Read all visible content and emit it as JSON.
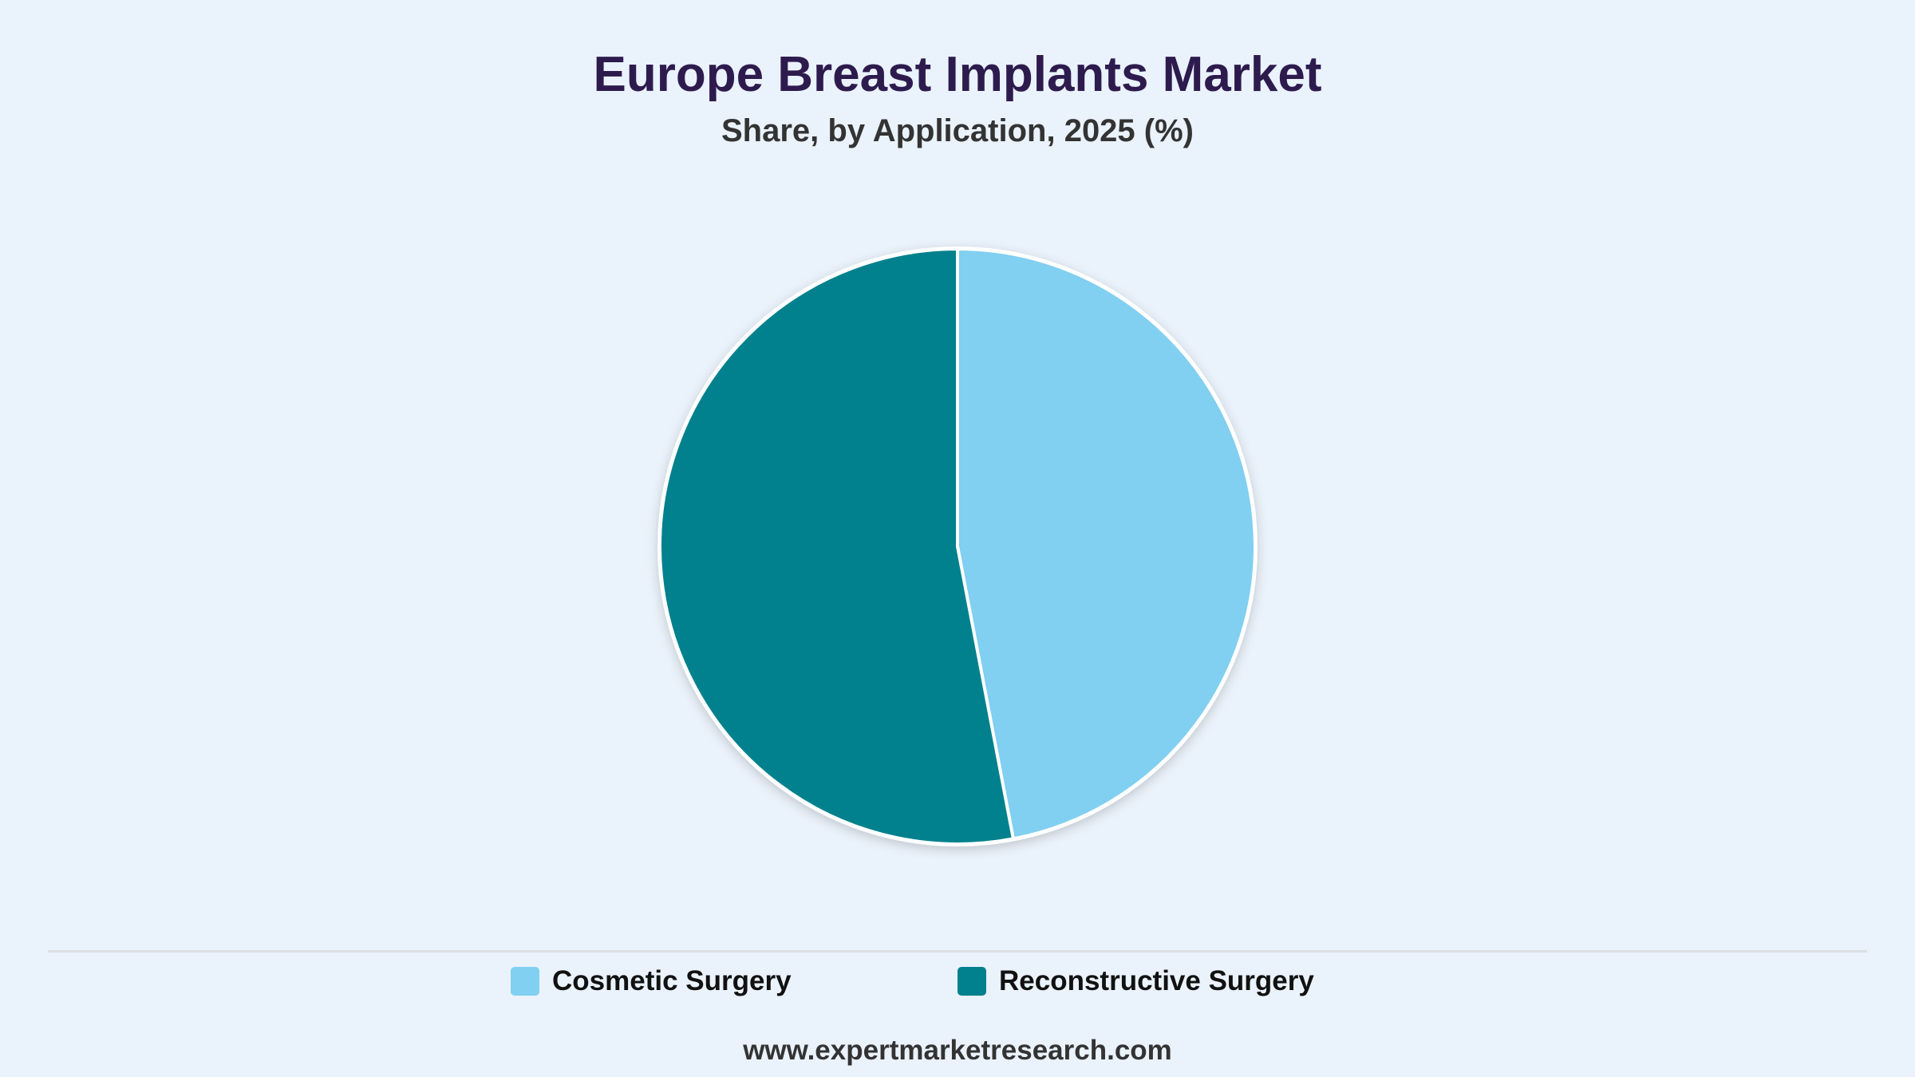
{
  "header": {
    "title": "Europe Breast Implants Market",
    "subtitle": "Share, by Application, 2025 (%)"
  },
  "chart_data": {
    "type": "pie",
    "title": "Europe Breast Implants Market",
    "subtitle": "Share, by Application, 2025 (%)",
    "categories": [
      "Cosmetic Surgery",
      "Reconstructive Surgery"
    ],
    "values": [
      47,
      53
    ],
    "colors": [
      "#81cff1",
      "#00818d"
    ],
    "start_angle": "12 o'clock",
    "direction": "clockwise",
    "legend_position": "bottom"
  },
  "legend": {
    "items": [
      {
        "label": "Cosmetic Surgery",
        "color": "#81cff1"
      },
      {
        "label": "Reconstructive Surgery",
        "color": "#00818d"
      }
    ]
  },
  "footer": {
    "source": "www.expertmarketresearch.com"
  }
}
